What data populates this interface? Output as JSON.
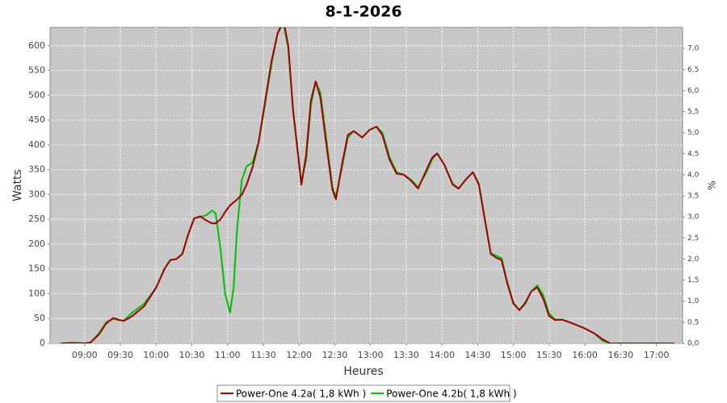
{
  "chart_data": {
    "type": "line",
    "title": "8-1-2026",
    "xlabel": "Heures",
    "ylabel": "Watts",
    "y2label": "%",
    "x": [
      "08:40",
      "08:50",
      "09:00",
      "09:05",
      "09:12",
      "09:18",
      "09:24",
      "09:28",
      "09:33",
      "09:40",
      "09:50",
      "10:00",
      "10:07",
      "10:12",
      "10:17",
      "10:22",
      "10:27",
      "10:32",
      "10:37",
      "10:42",
      "10:47",
      "10:50",
      "10:54",
      "10:58",
      "11:02",
      "11:05",
      "11:08",
      "11:12",
      "11:16",
      "11:21",
      "11:26",
      "11:31",
      "11:37",
      "11:42",
      "11:47",
      "11:51",
      "11:55",
      "12:02",
      "12:06",
      "12:10",
      "12:14",
      "12:18",
      "12:23",
      "12:28",
      "12:31",
      "12:36",
      "12:41",
      "12:46",
      "12:53",
      "12:59",
      "13:05",
      "13:10",
      "13:16",
      "13:22",
      "13:28",
      "13:34",
      "13:40",
      "13:47",
      "13:52",
      "13:56",
      "14:02",
      "14:09",
      "14:14",
      "14:20",
      "14:26",
      "14:31",
      "14:36",
      "14:41",
      "14:46",
      "14:50",
      "14:55",
      "15:00",
      "15:05",
      "15:10",
      "15:15",
      "15:20",
      "15:25",
      "15:30",
      "15:35",
      "15:41",
      "15:50",
      "16:00",
      "16:08",
      "16:15",
      "16:21",
      "16:30",
      "16:45",
      "17:00",
      "17:15"
    ],
    "series": [
      {
        "name": "Power-One 4.2b( 1,8 kWh )",
        "color": "#00c000",
        "values": [
          0,
          1,
          0,
          2,
          20,
          42,
          50,
          47,
          46,
          62,
          80,
          112,
          150,
          168,
          170,
          180,
          220,
          252,
          255,
          258,
          268,
          262,
          190,
          100,
          62,
          110,
          230,
          330,
          357,
          365,
          405,
          475,
          565,
          625,
          645,
          595,
          470,
          325,
          370,
          480,
          528,
          505,
          410,
          315,
          295,
          355,
          415,
          428,
          415,
          430,
          437,
          425,
          375,
          345,
          340,
          330,
          315,
          345,
          372,
          383,
          360,
          322,
          312,
          330,
          345,
          322,
          250,
          182,
          176,
          172,
          122,
          82,
          67,
          80,
          105,
          117,
          97,
          60,
          48,
          48,
          40,
          30,
          20,
          5,
          0,
          0,
          0,
          0,
          0
        ]
      },
      {
        "name": "Power-One 4.2a( 1,8 kWh )",
        "color": "#a00000",
        "values": [
          0,
          1,
          0,
          2,
          18,
          40,
          51,
          48,
          45,
          55,
          75,
          112,
          150,
          168,
          170,
          180,
          220,
          252,
          256,
          248,
          242,
          242,
          250,
          265,
          278,
          284,
          290,
          300,
          320,
          355,
          405,
          480,
          570,
          625,
          650,
          600,
          470,
          320,
          380,
          490,
          528,
          495,
          400,
          310,
          290,
          360,
          420,
          428,
          415,
          430,
          437,
          420,
          370,
          342,
          340,
          328,
          312,
          350,
          375,
          383,
          360,
          320,
          312,
          330,
          345,
          320,
          250,
          180,
          172,
          168,
          120,
          80,
          67,
          82,
          105,
          113,
          90,
          55,
          47,
          48,
          40,
          30,
          20,
          8,
          0,
          0,
          0,
          0,
          0
        ]
      }
    ],
    "xlim": [
      "08:31",
      "17:22"
    ],
    "xticks": [
      "09:00",
      "09:30",
      "10:00",
      "10:30",
      "11:00",
      "11:30",
      "12:00",
      "12:30",
      "13:00",
      "13:30",
      "14:00",
      "14:30",
      "15:00",
      "15:30",
      "16:00",
      "16:30",
      "17:00"
    ],
    "ylim": [
      0,
      637
    ],
    "yticks": [
      0,
      50,
      100,
      150,
      200,
      250,
      300,
      350,
      400,
      450,
      500,
      550,
      600
    ],
    "y2lim": [
      0,
      7.5
    ],
    "y2ticks": [
      {
        "value": 0,
        "label": "0,0"
      },
      {
        "value": 0.5,
        "label": "0,5"
      },
      {
        "value": 1,
        "label": "1,0"
      },
      {
        "value": 1.5,
        "label": "1,5"
      },
      {
        "value": 2,
        "label": "2,0"
      },
      {
        "value": 2.5,
        "label": "2,5"
      },
      {
        "value": 3,
        "label": "3,0"
      },
      {
        "value": 3.5,
        "label": "3,5"
      },
      {
        "value": 4,
        "label": "4,0"
      },
      {
        "value": 4.5,
        "label": "4,5"
      },
      {
        "value": 5,
        "label": "5,0"
      },
      {
        "value": 5.5,
        "label": "5,5"
      },
      {
        "value": 6,
        "label": "6,0"
      },
      {
        "value": 6.5,
        "label": "6,5"
      },
      {
        "value": 7,
        "label": "7,0"
      }
    ],
    "grid": true,
    "legend": "bottom"
  }
}
